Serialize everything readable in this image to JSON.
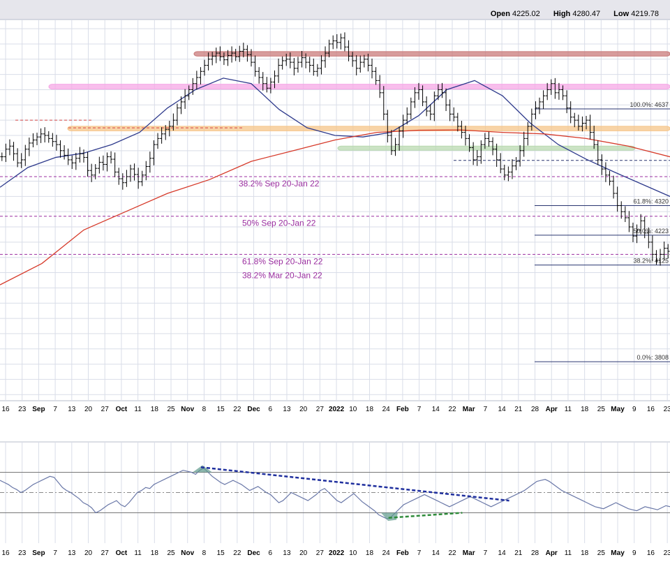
{
  "header": {
    "open_label": "Open",
    "open_value": "4225.02",
    "high_label": "High",
    "high_value": "4280.47",
    "low_label": "Low",
    "low_value": "4219.78"
  },
  "colors": {
    "background": "#ffffff",
    "grid": "#d9dde8",
    "price_bars": "#000000",
    "ma_short": "#2e3a8c",
    "ma_long": "#d63a2a",
    "fib_text": "#9b2fa0",
    "resistance_band": "#c97b7b",
    "pink_band": "#f5a8e6",
    "orange_band": "#f5c58a",
    "green_band": "#b9d9b0",
    "rsi_line": "#6a78a8",
    "rsi_fill": "#5e9a8c",
    "trend_blue": "#1f2f9e",
    "trend_green": "#2e8b3a"
  },
  "chart_data": [
    {
      "type": "ohlc",
      "panel": "price",
      "ylim": [
        3680,
        4930
      ],
      "x_axis_labels": [
        "16",
        "23",
        "Sep",
        "7",
        "13",
        "20",
        "27",
        "Oct",
        "11",
        "18",
        "25",
        "Nov",
        "8",
        "15",
        "22",
        "Dec",
        "6",
        "13",
        "20",
        "27",
        "2022",
        "10",
        "18",
        "24",
        "Feb",
        "7",
        "14",
        "22",
        "Mar",
        "7",
        "14",
        "21",
        "28",
        "Apr",
        "11",
        "18",
        "25",
        "May",
        "9",
        "16",
        "23"
      ],
      "moving_averages": [
        {
          "color": "#2e3a8c",
          "values": [
            4380,
            4445,
            4478,
            4492,
            4520,
            4560,
            4640,
            4700,
            4738,
            4720,
            4635,
            4575,
            4550,
            4545,
            4560,
            4615,
            4700,
            4730,
            4680,
            4590,
            4520,
            4472,
            4430,
            4390,
            4350
          ]
        },
        {
          "color": "#d63a2a",
          "values": [
            4060,
            4130,
            4240,
            4300,
            4360,
            4405,
            4465,
            4500,
            4535,
            4560,
            4567,
            4568,
            4560,
            4555,
            4540,
            4515,
            4480
          ]
        }
      ],
      "horizontal_lines": [
        {
          "label": "38.2% Sep 20-Jan 22",
          "value": 4415
        },
        {
          "label": "50% Sep 20-Jan 22",
          "value": 4285
        },
        {
          "label": "61.8% Sep 20-Jan 22",
          "label2": "38.2% Mar 20-Jan 22",
          "value": 4160
        }
      ],
      "fib_levels": [
        {
          "label": "100.0%: 4637",
          "value": 4637
        },
        {
          "label": "61.8%: 4320",
          "value": 4320
        },
        {
          "label": "50.0%: 4223",
          "value": 4223
        },
        {
          "label": "38.2%: 4125",
          "value": 4125
        },
        {
          "label": "0.0%: 3808",
          "value": 3808
        }
      ],
      "bands": [
        {
          "name": "resistance",
          "value_top": 4825,
          "value_bottom": 4810
        },
        {
          "name": "pink",
          "value_top": 4718,
          "value_bottom": 4702
        },
        {
          "name": "orange",
          "value_top": 4580,
          "value_bottom": 4565
        },
        {
          "name": "green",
          "value_top": 4515,
          "value_bottom": 4505
        }
      ],
      "bar_closes": [
        4480,
        4505,
        4515,
        4490,
        4460,
        4470,
        4505,
        4525,
        4535,
        4545,
        4555,
        4550,
        4540,
        4530,
        4520,
        4500,
        4485,
        4470,
        4460,
        4475,
        4490,
        4478,
        4435,
        4420,
        4442,
        4462,
        4455,
        4480,
        4472,
        4430,
        4408,
        4395,
        4415,
        4440,
        4422,
        4398,
        4420,
        4448,
        4475,
        4520,
        4540,
        4555,
        4570,
        4580,
        4600,
        4640,
        4660,
        4680,
        4700,
        4720,
        4740,
        4760,
        4780,
        4800,
        4810,
        4820,
        4808,
        4798,
        4812,
        4820,
        4808,
        4826,
        4832,
        4815,
        4790,
        4760,
        4740,
        4720,
        4705,
        4725,
        4745,
        4780,
        4795,
        4800,
        4790,
        4770,
        4790,
        4805,
        4790,
        4780,
        4760,
        4770,
        4795,
        4820,
        4850,
        4860,
        4855,
        4870,
        4840,
        4810,
        4795,
        4770,
        4790,
        4800,
        4780,
        4760,
        4730,
        4690,
        4620,
        4550,
        4500,
        4520,
        4565,
        4600,
        4620,
        4660,
        4690,
        4700,
        4660,
        4630,
        4620,
        4680,
        4700,
        4690,
        4650,
        4620,
        4610,
        4580,
        4560,
        4540,
        4510,
        4470,
        4480,
        4520,
        4540,
        4530,
        4505,
        4470,
        4440,
        4420,
        4430,
        4450,
        4465,
        4500,
        4540,
        4580,
        4620,
        4640,
        4660,
        4680,
        4700,
        4720,
        4690,
        4700,
        4680,
        4640,
        4610,
        4600,
        4580,
        4590,
        4600,
        4560,
        4520,
        4470,
        4440,
        4420,
        4400,
        4360,
        4320,
        4300,
        4280,
        4250,
        4220,
        4240,
        4270,
        4230,
        4200,
        4160,
        4140,
        4160,
        4180,
        4170
      ]
    },
    {
      "type": "line",
      "panel": "rsi",
      "ylim": [
        0,
        100
      ],
      "reference_lines": [
        70,
        50,
        30
      ],
      "series": [
        {
          "values": [
            62,
            60,
            58,
            55,
            53,
            50,
            52,
            55,
            58,
            60,
            62,
            64,
            66,
            65,
            60,
            55,
            52,
            50,
            47,
            44,
            40,
            38,
            35,
            30,
            32,
            35,
            38,
            40,
            42,
            38,
            36,
            40,
            45,
            50,
            52,
            55,
            54,
            58,
            60,
            62,
            64,
            66,
            68,
            70,
            72,
            71,
            70,
            68,
            72,
            74,
            70,
            66,
            63,
            60,
            58,
            60,
            62,
            60,
            58,
            55,
            52,
            54,
            56,
            53,
            50,
            48,
            44,
            40,
            42,
            46,
            50,
            48,
            46,
            44,
            42,
            45,
            48,
            52,
            54,
            50,
            46,
            42,
            40,
            43,
            46,
            49,
            45,
            41,
            38,
            35,
            32,
            28,
            26,
            24,
            26,
            30,
            34,
            38,
            40,
            42,
            44,
            46,
            48,
            46,
            44,
            42,
            40,
            38,
            36,
            38,
            40,
            42,
            44,
            46,
            44,
            42,
            40,
            38,
            36,
            38,
            40,
            42,
            44,
            46,
            48,
            50,
            52,
            55,
            58,
            61,
            62,
            63,
            61,
            58,
            55,
            52,
            50,
            48,
            46,
            44,
            42,
            40,
            38,
            36,
            35,
            34,
            36,
            38,
            40,
            38,
            36,
            34,
            33,
            32,
            34,
            36,
            35,
            34,
            33,
            35,
            37,
            36
          ]
        }
      ],
      "trendlines": [
        {
          "color": "#1f2f9e",
          "from": [
            0.3,
            75
          ],
          "to": [
            0.76,
            42
          ]
        },
        {
          "color": "#2e8b3a",
          "from": [
            0.58,
            25
          ],
          "to": [
            0.69,
            30
          ]
        }
      ]
    }
  ]
}
